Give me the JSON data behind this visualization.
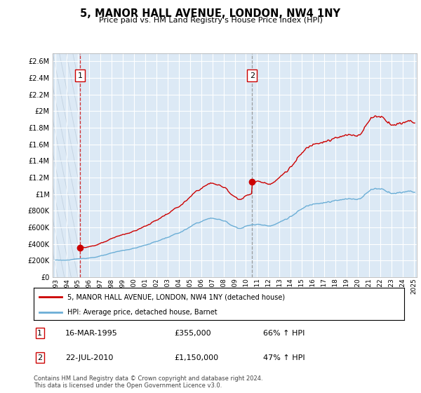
{
  "title": "5, MANOR HALL AVENUE, LONDON, NW4 1NY",
  "subtitle": "Price paid vs. HM Land Registry's House Price Index (HPI)",
  "ylim": [
    0,
    2700000
  ],
  "yticks": [
    0,
    200000,
    400000,
    600000,
    800000,
    1000000,
    1200000,
    1400000,
    1600000,
    1800000,
    2000000,
    2200000,
    2400000,
    2600000
  ],
  "ytick_labels": [
    "£0",
    "£200K",
    "£400K",
    "£600K",
    "£800K",
    "£1M",
    "£1.2M",
    "£1.4M",
    "£1.6M",
    "£1.8M",
    "£2M",
    "£2.2M",
    "£2.4M",
    "£2.6M"
  ],
  "background_color": "#ffffff",
  "plot_bg_color": "#dce9f5",
  "grid_color": "#ffffff",
  "hpi_color": "#6baed6",
  "price_color": "#cc0000",
  "hatch_color": "#b8c8d8",
  "sale1_x": 1995.21,
  "sale1_y": 355000,
  "sale1_label": "1",
  "sale1_date": "16-MAR-1995",
  "sale1_price": "£355,000",
  "sale1_hpi": "66% ↑ HPI",
  "sale2_x": 2010.55,
  "sale2_y": 1150000,
  "sale2_label": "2",
  "sale2_date": "22-JUL-2010",
  "sale2_price": "£1,150,000",
  "sale2_hpi": "47% ↑ HPI",
  "legend_line1": "5, MANOR HALL AVENUE, LONDON, NW4 1NY (detached house)",
  "legend_line2": "HPI: Average price, detached house, Barnet",
  "footer": "Contains HM Land Registry data © Crown copyright and database right 2024.\nThis data is licensed under the Open Government Licence v3.0.",
  "xmin": 1992.75,
  "xmax": 2025.25,
  "xticks": [
    1993,
    1994,
    1995,
    1996,
    1997,
    1998,
    1999,
    2000,
    2001,
    2002,
    2003,
    2004,
    2005,
    2006,
    2007,
    2008,
    2009,
    2010,
    2011,
    2012,
    2013,
    2014,
    2015,
    2016,
    2017,
    2018,
    2019,
    2020,
    2021,
    2022,
    2023,
    2024,
    2025
  ]
}
